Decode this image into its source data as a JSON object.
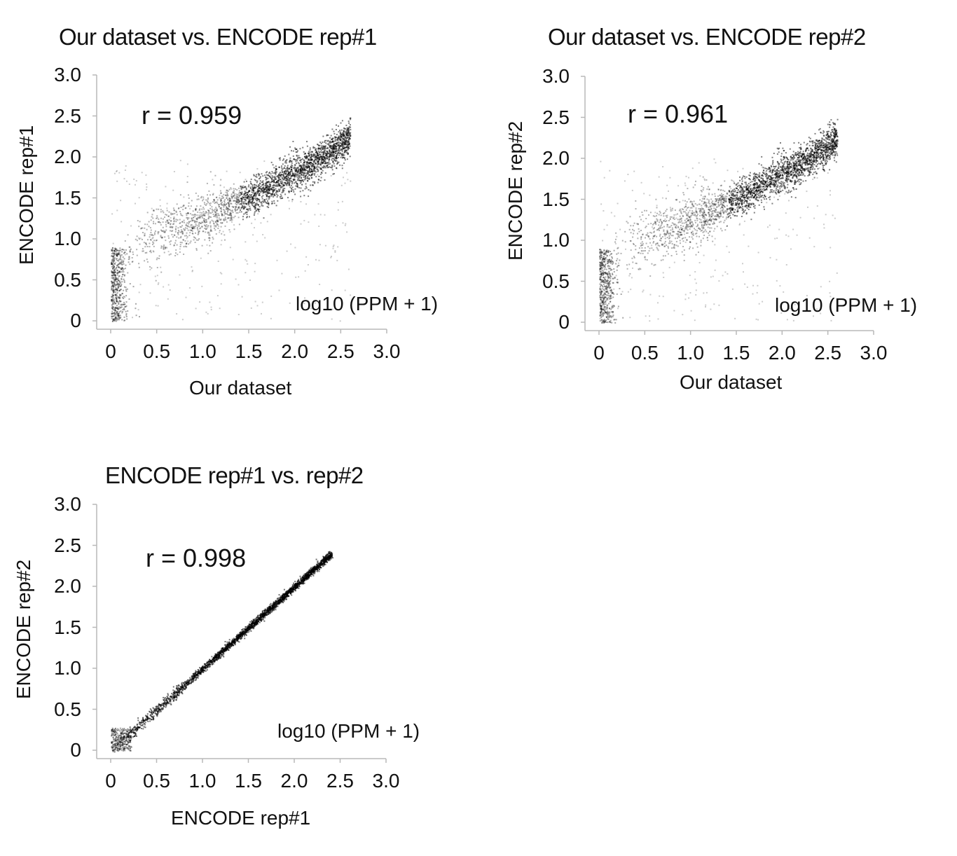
{
  "chart_data": [
    {
      "type": "scatter",
      "title": "Our dataset vs. ENCODE rep#1",
      "xlabel": "Our dataset",
      "ylabel": "ENCODE  rep#1",
      "units_label": "log10 (PPM + 1)",
      "correlation_label": "r = 0.959",
      "xlim": [
        0,
        3.0
      ],
      "ylim": [
        0,
        3.0
      ],
      "xticks": [
        "0",
        "0.5",
        "1.0",
        "1.5",
        "2.0",
        "2.5",
        "3.0"
      ],
      "yticks": [
        "0",
        "0.5",
        "1.0",
        "1.5",
        "2.0",
        "2.5",
        "3.0"
      ],
      "point_color": "#000000",
      "series": [
        {
          "x": [
            0.02,
            0.05,
            0.08,
            0.1,
            0.15,
            0.2,
            0.25,
            0.3,
            0.35,
            0.4,
            0.5,
            0.6,
            0.7,
            0.8,
            0.9,
            1.0,
            1.1,
            1.2,
            1.3,
            1.4,
            1.5,
            1.6,
            1.7,
            1.8,
            1.9,
            2.0,
            2.1,
            2.2,
            2.3,
            2.4,
            2.5,
            2.6,
            2.7
          ],
          "y": [
            0.3,
            0.55,
            0.7,
            0.8,
            0.88,
            0.92,
            0.95,
            0.98,
            1.0,
            1.03,
            1.07,
            1.1,
            1.13,
            1.17,
            1.2,
            1.25,
            1.3,
            1.35,
            1.4,
            1.45,
            1.5,
            1.56,
            1.62,
            1.7,
            1.76,
            1.82,
            1.87,
            1.93,
            2.0,
            2.08,
            2.15,
            2.25,
            2.38
          ]
        }
      ]
    },
    {
      "type": "scatter",
      "title": "Our dataset vs. ENCODE rep#2",
      "xlabel": "Our dataset",
      "ylabel": "ENCODE  rep#2",
      "units_label": "log10 (PPM + 1)",
      "correlation_label": "r = 0.961",
      "xlim": [
        0,
        3.0
      ],
      "ylim": [
        0,
        3.0
      ],
      "xticks": [
        "0",
        "0.5",
        "1.0",
        "1.5",
        "2.0",
        "2.5",
        "3.0"
      ],
      "yticks": [
        "0",
        "0.5",
        "1.0",
        "1.5",
        "2.0",
        "2.5",
        "3.0"
      ],
      "point_color": "#000000",
      "series": [
        {
          "x": [
            0.02,
            0.05,
            0.08,
            0.1,
            0.15,
            0.2,
            0.25,
            0.3,
            0.35,
            0.4,
            0.5,
            0.6,
            0.7,
            0.8,
            0.9,
            1.0,
            1.1,
            1.2,
            1.3,
            1.4,
            1.5,
            1.6,
            1.7,
            1.8,
            1.9,
            2.0,
            2.1,
            2.2,
            2.3,
            2.4,
            2.5,
            2.6,
            2.7
          ],
          "y": [
            0.3,
            0.55,
            0.7,
            0.8,
            0.88,
            0.92,
            0.95,
            0.98,
            1.0,
            1.03,
            1.07,
            1.1,
            1.13,
            1.17,
            1.2,
            1.25,
            1.3,
            1.35,
            1.4,
            1.45,
            1.5,
            1.56,
            1.62,
            1.7,
            1.76,
            1.82,
            1.87,
            1.93,
            2.0,
            2.08,
            2.15,
            2.25,
            2.38
          ]
        }
      ]
    },
    {
      "type": "scatter",
      "title": "ENCODE rep#1 vs. rep#2",
      "xlabel": "ENCODE  rep#1",
      "ylabel": "ENCODE  rep#2",
      "units_label": "log10 (PPM + 1)",
      "correlation_label": "r = 0.998",
      "xlim": [
        0,
        3.0
      ],
      "ylim": [
        0,
        3.0
      ],
      "xticks": [
        "0",
        "0.5",
        "1.0",
        "1.5",
        "2.0",
        "2.5",
        "3.0"
      ],
      "yticks": [
        "0",
        "0.5",
        "1.0",
        "1.5",
        "2.0",
        "2.5",
        "3.0"
      ],
      "point_color": "#000000",
      "series": [
        {
          "x": [
            0.0,
            0.1,
            0.2,
            0.3,
            0.4,
            0.5,
            0.6,
            0.7,
            0.8,
            0.9,
            1.0,
            1.1,
            1.2,
            1.3,
            1.4,
            1.5,
            1.6,
            1.7,
            1.8,
            1.9,
            2.0,
            2.1,
            2.2,
            2.3,
            2.4
          ],
          "y": [
            0.0,
            0.1,
            0.2,
            0.3,
            0.4,
            0.5,
            0.6,
            0.7,
            0.8,
            0.9,
            1.0,
            1.1,
            1.2,
            1.3,
            1.4,
            1.5,
            1.6,
            1.7,
            1.8,
            1.9,
            2.0,
            2.1,
            2.2,
            2.3,
            2.4
          ]
        }
      ]
    }
  ]
}
